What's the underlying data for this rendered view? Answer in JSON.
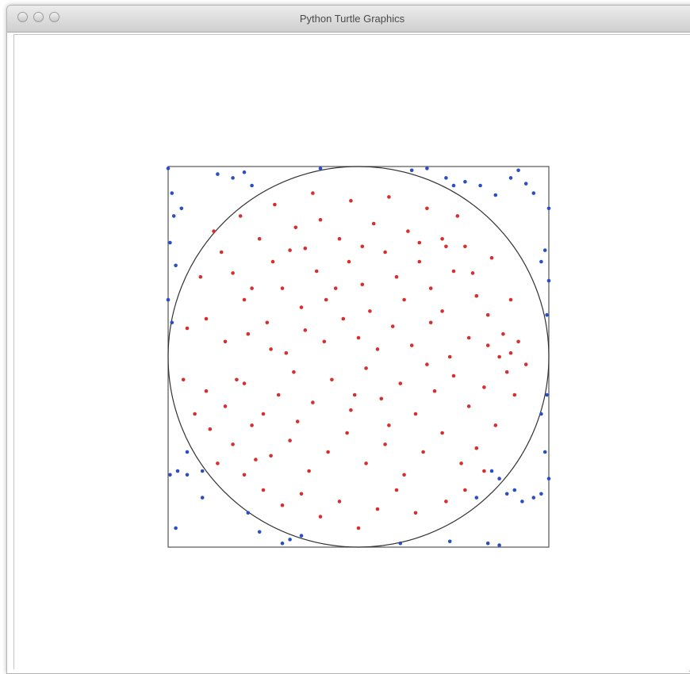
{
  "window": {
    "title": "Python Turtle Graphics",
    "buttons": [
      "close",
      "minimize",
      "zoom"
    ]
  },
  "chart_data": {
    "type": "scatter",
    "title": "",
    "xlabel": "",
    "ylabel": "",
    "xlim": [
      -1,
      1
    ],
    "ylim": [
      -1,
      1
    ],
    "shapes": [
      {
        "kind": "square",
        "x": [
          -1,
          1
        ],
        "y": [
          -1,
          1
        ],
        "color": "#555555"
      },
      {
        "kind": "circle",
        "cx": 0,
        "cy": 0,
        "r": 1,
        "color": "#333333"
      }
    ],
    "series": [
      {
        "color": "#d62f2f",
        "points": [
          [
            -0.83,
            0.42
          ],
          [
            -0.72,
            0.55
          ],
          [
            -0.66,
            0.44
          ],
          [
            -0.6,
            0.3
          ],
          [
            -0.52,
            0.62
          ],
          [
            -0.45,
            0.5
          ],
          [
            -0.4,
            0.36
          ],
          [
            -0.33,
            0.68
          ],
          [
            -0.28,
            0.57
          ],
          [
            -0.22,
            0.45
          ],
          [
            -0.17,
            0.3
          ],
          [
            -0.1,
            0.62
          ],
          [
            -0.05,
            0.5
          ],
          [
            0.02,
            0.38
          ],
          [
            0.08,
            0.7
          ],
          [
            0.14,
            0.55
          ],
          [
            0.2,
            0.42
          ],
          [
            0.26,
            0.66
          ],
          [
            0.32,
            0.5
          ],
          [
            0.38,
            0.36
          ],
          [
            0.44,
            0.62
          ],
          [
            0.5,
            0.45
          ],
          [
            0.56,
            0.58
          ],
          [
            0.62,
            0.32
          ],
          [
            0.68,
            0.22
          ],
          [
            -0.9,
            0.15
          ],
          [
            -0.8,
            0.2
          ],
          [
            -0.7,
            0.08
          ],
          [
            -0.58,
            0.12
          ],
          [
            -0.48,
            0.18
          ],
          [
            -0.38,
            0.02
          ],
          [
            -0.28,
            0.14
          ],
          [
            -0.18,
            0.08
          ],
          [
            -0.08,
            0.2
          ],
          [
            0.0,
            0.1
          ],
          [
            0.1,
            0.04
          ],
          [
            0.18,
            0.16
          ],
          [
            0.28,
            0.06
          ],
          [
            0.38,
            0.18
          ],
          [
            0.48,
            0.0
          ],
          [
            0.58,
            0.1
          ],
          [
            0.68,
            0.06
          ],
          [
            0.76,
            0.12
          ],
          [
            0.8,
            0.02
          ],
          [
            0.84,
            0.08
          ],
          [
            0.88,
            -0.04
          ],
          [
            0.78,
            -0.08
          ],
          [
            0.74,
            0.0
          ],
          [
            -0.92,
            -0.12
          ],
          [
            -0.8,
            -0.18
          ],
          [
            -0.7,
            -0.26
          ],
          [
            -0.6,
            -0.14
          ],
          [
            -0.5,
            -0.3
          ],
          [
            -0.42,
            -0.2
          ],
          [
            -0.34,
            -0.08
          ],
          [
            -0.24,
            -0.24
          ],
          [
            -0.14,
            -0.12
          ],
          [
            -0.04,
            -0.28
          ],
          [
            0.04,
            -0.06
          ],
          [
            0.12,
            -0.22
          ],
          [
            0.22,
            -0.14
          ],
          [
            0.3,
            -0.3
          ],
          [
            0.4,
            -0.18
          ],
          [
            0.5,
            -0.1
          ],
          [
            0.58,
            -0.26
          ],
          [
            0.66,
            -0.16
          ],
          [
            -0.78,
            -0.38
          ],
          [
            -0.66,
            -0.46
          ],
          [
            -0.56,
            -0.36
          ],
          [
            -0.46,
            -0.52
          ],
          [
            -0.36,
            -0.44
          ],
          [
            -0.26,
            -0.6
          ],
          [
            -0.16,
            -0.5
          ],
          [
            -0.06,
            -0.4
          ],
          [
            0.04,
            -0.56
          ],
          [
            0.14,
            -0.46
          ],
          [
            0.24,
            -0.62
          ],
          [
            0.34,
            -0.5
          ],
          [
            0.44,
            -0.4
          ],
          [
            0.54,
            -0.56
          ],
          [
            -0.5,
            -0.7
          ],
          [
            -0.4,
            -0.78
          ],
          [
            -0.3,
            -0.72
          ],
          [
            -0.2,
            -0.84
          ],
          [
            -0.1,
            -0.76
          ],
          [
            0.0,
            -0.9
          ],
          [
            0.1,
            -0.8
          ],
          [
            0.2,
            -0.7
          ],
          [
            0.3,
            -0.82
          ],
          [
            -0.64,
            -0.12
          ],
          [
            -0.46,
            0.04
          ],
          [
            -0.3,
            0.26
          ],
          [
            -0.12,
            0.36
          ],
          [
            0.06,
            0.24
          ],
          [
            0.24,
            0.3
          ],
          [
            0.44,
            0.24
          ],
          [
            0.6,
            0.44
          ],
          [
            -0.76,
            0.66
          ],
          [
            -0.62,
            0.74
          ],
          [
            -0.44,
            0.8
          ],
          [
            -0.24,
            0.86
          ],
          [
            -0.04,
            0.82
          ],
          [
            0.16,
            0.84
          ],
          [
            0.36,
            0.78
          ],
          [
            0.52,
            0.74
          ],
          [
            0.7,
            0.52
          ],
          [
            0.8,
            0.3
          ],
          [
            -0.86,
            -0.3
          ],
          [
            -0.74,
            -0.56
          ],
          [
            -0.6,
            -0.62
          ],
          [
            0.62,
            -0.48
          ],
          [
            0.72,
            -0.36
          ],
          [
            0.82,
            -0.2
          ],
          [
            0.66,
            -0.6
          ],
          [
            0.56,
            -0.7
          ],
          [
            0.46,
            -0.76
          ],
          [
            -0.54,
            -0.54
          ],
          [
            -0.2,
            0.72
          ],
          [
            0.02,
            0.58
          ],
          [
            0.32,
            0.6
          ],
          [
            -0.36,
            0.56
          ],
          [
            -0.02,
            -0.2
          ],
          [
            0.16,
            -0.36
          ],
          [
            -0.32,
            -0.34
          ],
          [
            0.36,
            -0.04
          ],
          [
            -0.56,
            0.36
          ],
          [
            0.46,
            0.58
          ]
        ]
      },
      {
        "color": "#2a4fc4",
        "points": [
          [
            -1.0,
            0.99
          ],
          [
            -0.98,
            0.86
          ],
          [
            -0.97,
            0.74
          ],
          [
            -0.93,
            0.78
          ],
          [
            -0.99,
            0.6
          ],
          [
            -0.96,
            0.48
          ],
          [
            -1.0,
            0.3
          ],
          [
            -0.98,
            0.18
          ],
          [
            -0.74,
            0.96
          ],
          [
            -0.66,
            0.94
          ],
          [
            -0.6,
            0.97
          ],
          [
            -0.56,
            0.9
          ],
          [
            -0.2,
            0.99
          ],
          [
            0.28,
            0.98
          ],
          [
            0.36,
            0.99
          ],
          [
            0.46,
            0.94
          ],
          [
            0.5,
            0.9
          ],
          [
            0.56,
            0.92
          ],
          [
            0.64,
            0.9
          ],
          [
            0.72,
            0.85
          ],
          [
            0.8,
            0.94
          ],
          [
            0.84,
            0.98
          ],
          [
            0.88,
            0.91
          ],
          [
            0.92,
            0.86
          ],
          [
            1.0,
            0.78
          ],
          [
            0.98,
            0.56
          ],
          [
            0.96,
            0.5
          ],
          [
            1.0,
            0.4
          ],
          [
            0.99,
            0.22
          ],
          [
            -0.99,
            -0.62
          ],
          [
            -0.95,
            -0.6
          ],
          [
            -0.9,
            -0.62
          ],
          [
            -0.82,
            -0.6
          ],
          [
            -0.9,
            -0.5
          ],
          [
            -0.82,
            -0.74
          ],
          [
            -0.96,
            -0.9
          ],
          [
            -0.58,
            -0.82
          ],
          [
            -0.52,
            -0.92
          ],
          [
            -0.4,
            -0.98
          ],
          [
            -0.36,
            -0.96
          ],
          [
            -0.3,
            -0.94
          ],
          [
            0.22,
            -0.98
          ],
          [
            0.48,
            -0.97
          ],
          [
            0.68,
            -0.98
          ],
          [
            0.74,
            -0.99
          ],
          [
            0.74,
            -0.64
          ],
          [
            0.82,
            -0.7
          ],
          [
            0.78,
            -0.72
          ],
          [
            0.86,
            -0.76
          ],
          [
            0.92,
            -0.74
          ],
          [
            0.96,
            -0.72
          ],
          [
            1.0,
            -0.64
          ],
          [
            0.98,
            -0.5
          ],
          [
            0.96,
            -0.3
          ],
          [
            0.99,
            -0.2
          ],
          [
            0.62,
            -0.74
          ],
          [
            0.7,
            -0.6
          ]
        ]
      }
    ]
  }
}
